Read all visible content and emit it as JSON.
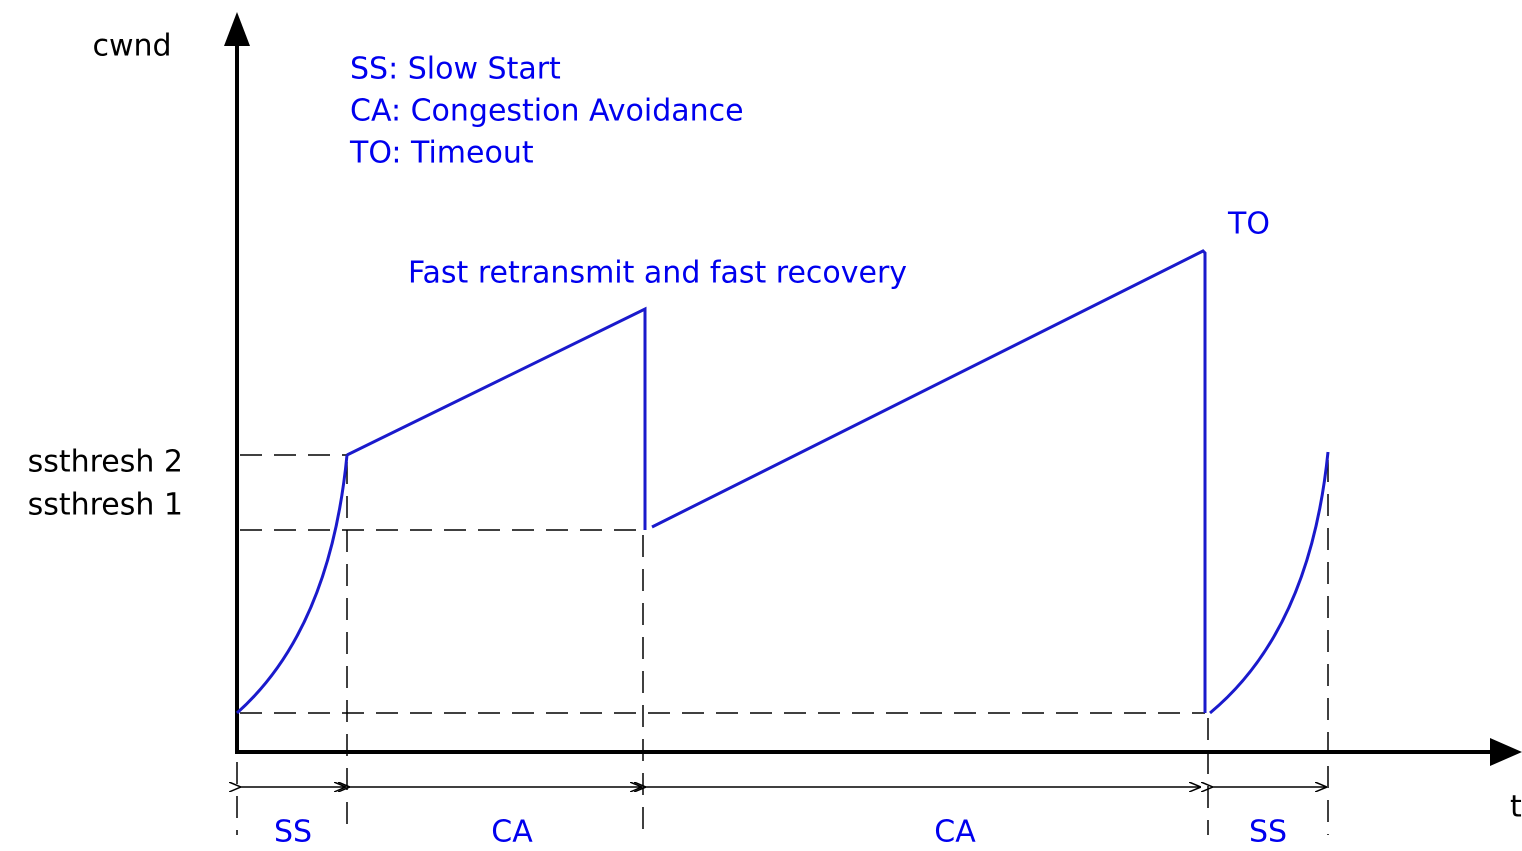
{
  "axes": {
    "y_label": "cwnd",
    "x_label": "t"
  },
  "thresholds": [
    "ssthresh 2",
    "ssthresh 1"
  ],
  "legend": [
    "SS: Slow Start",
    "CA: Congestion Avoidance",
    "TO: Timeout"
  ],
  "annotations": {
    "fast_recovery": "Fast retransmit and fast recovery",
    "timeout": "TO"
  },
  "phases": [
    "SS",
    "CA",
    "CA",
    "SS"
  ]
}
